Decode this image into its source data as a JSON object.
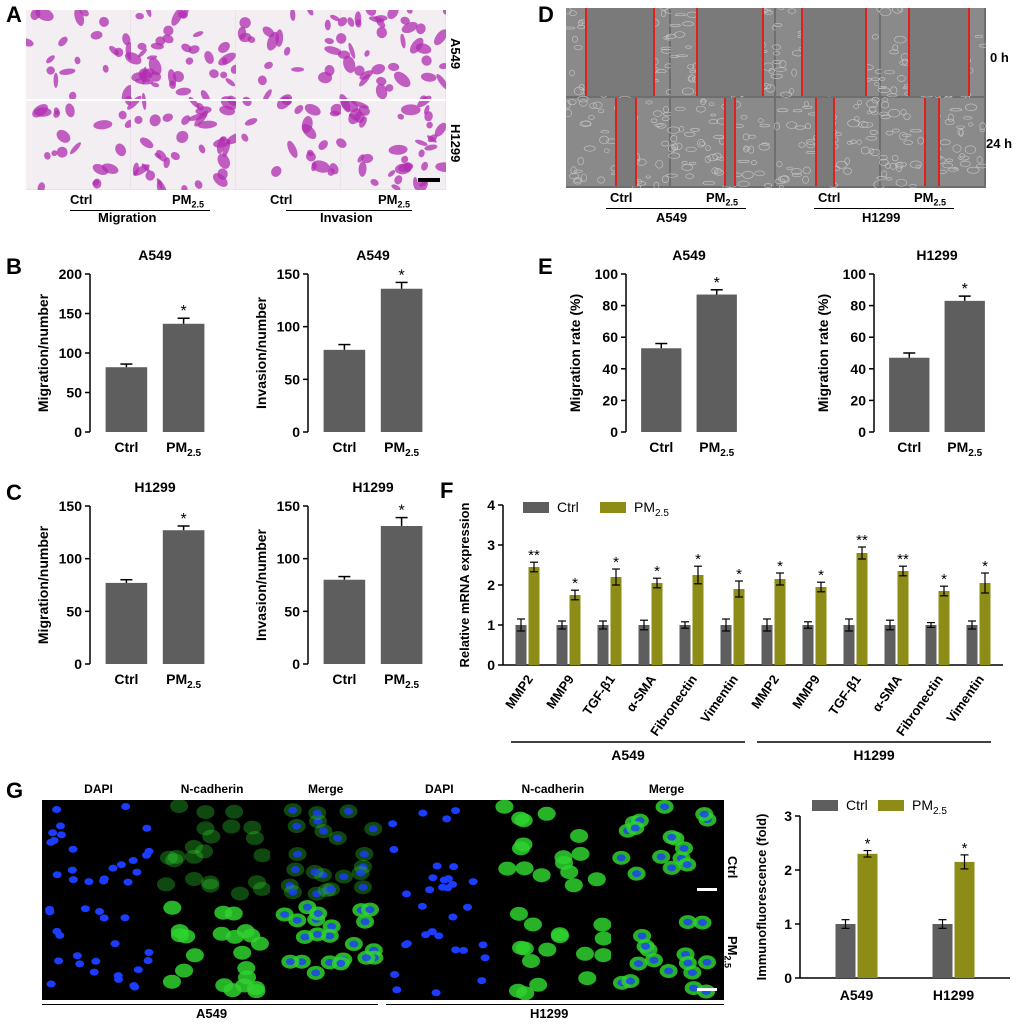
{
  "panels": {
    "A": {
      "label": "A",
      "rows": [
        "A549",
        "H1299"
      ],
      "groups": [
        {
          "title": "Migration",
          "ctrl": "Ctrl",
          "pm": "PM",
          "sub": "2.5"
        },
        {
          "title": "Invasion",
          "ctrl": "Ctrl",
          "pm": "PM",
          "sub": "2.5"
        }
      ]
    },
    "D": {
      "label": "D",
      "rows": [
        "0 h",
        "24 h"
      ],
      "groups": [
        {
          "title": "A549",
          "ctrl": "Ctrl",
          "pm": "PM",
          "sub": "2.5"
        },
        {
          "title": "H1299",
          "ctrl": "Ctrl",
          "pm": "PM",
          "sub": "2.5"
        }
      ]
    },
    "B": {
      "label": "B"
    },
    "C": {
      "label": "C"
    },
    "E": {
      "label": "E"
    },
    "F": {
      "label": "F"
    },
    "G": {
      "label": "G",
      "columns": [
        "DAPI",
        "N-cadherin",
        "Merge",
        "DAPI",
        "N-cadherin",
        "Merge"
      ],
      "rows": [
        "Ctrl",
        "PM",
        "2.5"
      ],
      "cells": [
        "A549",
        "H1299"
      ]
    }
  },
  "chart_data": [
    {
      "id": "B1",
      "type": "bar",
      "title": "A549",
      "ylabel": "Migration/number",
      "categories": [
        "Ctrl",
        "PM"
      ],
      "subscript": "2.5",
      "values": [
        82,
        137
      ],
      "errors": [
        4,
        7
      ],
      "ylim": [
        0,
        200
      ],
      "yticks": [
        0,
        50,
        100,
        150,
        200
      ],
      "sig": [
        "",
        "*"
      ]
    },
    {
      "id": "B2",
      "type": "bar",
      "title": "A549",
      "ylabel": "Invasion/number",
      "categories": [
        "Ctrl",
        "PM"
      ],
      "subscript": "2.5",
      "values": [
        78,
        136
      ],
      "errors": [
        5,
        6
      ],
      "ylim": [
        0,
        150
      ],
      "yticks": [
        0,
        50,
        100,
        150
      ],
      "sig": [
        "",
        "*"
      ]
    },
    {
      "id": "C1",
      "type": "bar",
      "title": "H1299",
      "ylabel": "Migration/number",
      "categories": [
        "Ctrl",
        "PM"
      ],
      "subscript": "2.5",
      "values": [
        77,
        127
      ],
      "errors": [
        3,
        4
      ],
      "ylim": [
        0,
        150
      ],
      "yticks": [
        0,
        50,
        100,
        150
      ],
      "sig": [
        "",
        "*"
      ]
    },
    {
      "id": "C2",
      "type": "bar",
      "title": "H1299",
      "ylabel": "Invasion/number",
      "categories": [
        "Ctrl",
        "PM"
      ],
      "subscript": "2.5",
      "values": [
        80,
        131
      ],
      "errors": [
        3,
        8
      ],
      "ylim": [
        0,
        150
      ],
      "yticks": [
        0,
        50,
        100,
        150
      ],
      "sig": [
        "",
        "*"
      ]
    },
    {
      "id": "E1",
      "type": "bar",
      "title": "A549",
      "ylabel": "Migration rate (%)",
      "categories": [
        "Ctrl",
        "PM"
      ],
      "subscript": "2.5",
      "values": [
        53,
        87
      ],
      "errors": [
        3,
        3
      ],
      "ylim": [
        0,
        100
      ],
      "yticks": [
        0,
        20,
        40,
        60,
        80,
        100
      ],
      "sig": [
        "",
        "*"
      ]
    },
    {
      "id": "E2",
      "type": "bar",
      "title": "H1299",
      "ylabel": "Migration rate (%)",
      "categories": [
        "Ctrl",
        "PM"
      ],
      "subscript": "2.5",
      "values": [
        47,
        83
      ],
      "errors": [
        3,
        3
      ],
      "ylim": [
        0,
        100
      ],
      "yticks": [
        0,
        20,
        40,
        60,
        80,
        100
      ],
      "sig": [
        "",
        "*"
      ]
    },
    {
      "id": "F",
      "type": "bar",
      "ylabel": "Relative mRNA expression",
      "legend": [
        "Ctrl",
        "PM"
      ],
      "legend_sub": "2.5",
      "categories": [
        "MMP2",
        "MMP9",
        "TGF-β1",
        "α-SMA",
        "Fibronectin",
        "Vimentin",
        "MMP2",
        "MMP9",
        "TGF-β1",
        "α-SMA",
        "Fibronectin",
        "Vimentin"
      ],
      "groups": [
        "A549",
        "H1299"
      ],
      "series": [
        {
          "name": "Ctrl",
          "values": [
            1,
            1,
            1,
            1,
            1,
            1,
            1,
            1,
            1,
            1,
            1,
            1
          ],
          "errors": [
            0.15,
            0.1,
            0.1,
            0.12,
            0.08,
            0.15,
            0.15,
            0.08,
            0.15,
            0.12,
            0.06,
            0.1
          ]
        },
        {
          "name": "PM2.5",
          "values": [
            2.45,
            1.75,
            2.2,
            2.05,
            2.25,
            1.9,
            2.15,
            1.95,
            2.8,
            2.35,
            1.85,
            2.05
          ],
          "errors": [
            0.12,
            0.12,
            0.2,
            0.12,
            0.22,
            0.2,
            0.15,
            0.12,
            0.15,
            0.12,
            0.12,
            0.25
          ]
        }
      ],
      "sig": [
        "**",
        "*",
        "*",
        "*",
        "*",
        "*",
        "*",
        "*",
        "**",
        "**",
        "*",
        "*"
      ],
      "ylim": [
        0,
        4
      ],
      "yticks": [
        0,
        1,
        2,
        3,
        4
      ]
    },
    {
      "id": "G",
      "type": "bar",
      "ylabel": "Immunofluorescence (fold)",
      "legend": [
        "Ctrl",
        "PM"
      ],
      "legend_sub": "2.5",
      "categories": [
        "A549",
        "H1299"
      ],
      "series": [
        {
          "name": "Ctrl",
          "values": [
            1,
            1
          ],
          "errors": [
            0.08,
            0.08
          ]
        },
        {
          "name": "PM2.5",
          "values": [
            2.3,
            2.15
          ],
          "errors": [
            0.06,
            0.13
          ]
        }
      ],
      "sig": [
        "*",
        "*"
      ],
      "ylim": [
        0,
        3
      ],
      "yticks": [
        0,
        1,
        2,
        3
      ]
    }
  ],
  "colors": {
    "bar_gray": "#5e5e5e",
    "bar_olive": "#8c8c17",
    "crystal_purple": "#b02cb0",
    "scratch_line": "#e0201c",
    "dapi_blue": "#1c3cff",
    "ncad_green": "#2fd12f"
  }
}
